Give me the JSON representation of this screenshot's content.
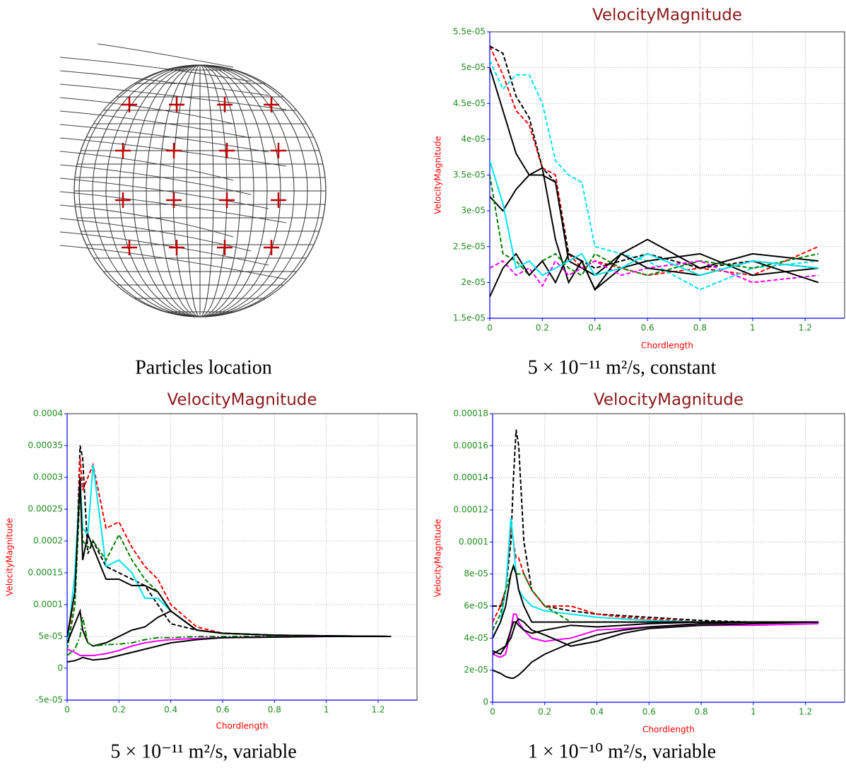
{
  "diagram": {
    "caption": "Particles location"
  },
  "chart_data": [
    {
      "type": "line",
      "title": "VelocityMagnitude",
      "xlabel": "Chordlength",
      "ylabel": "VelocityMagnitude",
      "caption": "5 × 10⁻¹¹ m²/s, constant",
      "x": [
        0,
        0.05,
        0.1,
        0.15,
        0.2,
        0.25,
        0.3,
        0.35,
        0.4,
        0.5,
        0.6,
        0.8,
        1.0,
        1.25
      ],
      "series": [
        {
          "color": "#ff0000",
          "dash": "dashed",
          "values": [
            5.3e-05,
            4.9e-05,
            4.4e-05,
            4.2e-05,
            3.6e-05,
            3.5e-05,
            2.4e-05,
            2.2e-05,
            2.3e-05,
            2.2e-05,
            2.1e-05,
            2.2e-05,
            2.1e-05,
            2.5e-05
          ]
        },
        {
          "color": "#00e5ee",
          "dash": "dashed",
          "values": [
            5.1e-05,
            4.7e-05,
            4.9e-05,
            4.9e-05,
            4.5e-05,
            3.7e-05,
            3.5e-05,
            3.4e-05,
            2.5e-05,
            2.4e-05,
            2.3e-05,
            1.9e-05,
            2.2e-05,
            2.3e-05
          ]
        },
        {
          "color": "#000000",
          "dash": "dashed",
          "values": [
            5.3e-05,
            5.2e-05,
            4.6e-05,
            4.3e-05,
            3.6e-05,
            3.4e-05,
            2.4e-05,
            2.3e-05,
            2.2e-05,
            2.3e-05,
            2.4e-05,
            2.2e-05,
            2.3e-05,
            2.2e-05
          ]
        },
        {
          "color": "#000000",
          "dash": "solid",
          "values": [
            5e-05,
            4.4e-05,
            3.8e-05,
            3.5e-05,
            3.5e-05,
            3.4e-05,
            2.3e-05,
            2.2e-05,
            2.1e-05,
            2.4e-05,
            2.6e-05,
            2.2e-05,
            2.4e-05,
            2.3e-05
          ]
        },
        {
          "color": "#000000",
          "dash": "solid",
          "values": [
            3.2e-05,
            3e-05,
            3.3e-05,
            3.5e-05,
            3.6e-05,
            2.6e-05,
            2e-05,
            2.3e-05,
            1.9e-05,
            2.2e-05,
            2.3e-05,
            2.4e-05,
            2.1e-05,
            2.2e-05
          ]
        },
        {
          "color": "#008000",
          "dash": "dashed",
          "values": [
            3.5e-05,
            2.4e-05,
            2.3e-05,
            2.1e-05,
            2.3e-05,
            2.4e-05,
            2.2e-05,
            2.1e-05,
            2.4e-05,
            2.2e-05,
            2.1e-05,
            2.3e-05,
            2.2e-05,
            2.4e-05
          ]
        },
        {
          "color": "#ff00ff",
          "dash": "dashed",
          "values": [
            2.2e-05,
            2.3e-05,
            2.1e-05,
            2.2e-05,
            1.95e-05,
            2.3e-05,
            2.1e-05,
            2.2e-05,
            2.3e-05,
            2.1e-05,
            2.2e-05,
            2.3e-05,
            2e-05,
            2.1e-05
          ]
        },
        {
          "color": "#000000",
          "dash": "solid",
          "values": [
            1.8e-05,
            2.2e-05,
            2.4e-05,
            2.1e-05,
            2.3e-05,
            2e-05,
            2.4e-05,
            2.3e-05,
            1.9e-05,
            2.4e-05,
            2.2e-05,
            2.1e-05,
            2.3e-05,
            2e-05
          ]
        },
        {
          "color": "#00e5ee",
          "dash": "solid",
          "values": [
            3.7e-05,
            3.1e-05,
            2.2e-05,
            2.3e-05,
            2.1e-05,
            2.2e-05,
            2.3e-05,
            2.4e-05,
            2.1e-05,
            2.2e-05,
            2.4e-05,
            2.1e-05,
            2.3e-05,
            2.2e-05
          ]
        }
      ],
      "xlim": [
        0,
        1.35
      ],
      "ylim": [
        1.5e-05,
        5.5e-05
      ],
      "xticks": [
        0,
        0.2,
        0.4,
        0.6,
        0.8,
        1,
        1.2
      ],
      "yticks": [
        {
          "value": 1.5e-05,
          "label": "1.5e-05"
        },
        {
          "value": 2e-05,
          "label": "2e-05"
        },
        {
          "value": 2.5e-05,
          "label": "2.5e-05"
        },
        {
          "value": 3e-05,
          "label": "3e-05"
        },
        {
          "value": 3.5e-05,
          "label": "3.5e-05"
        },
        {
          "value": 4e-05,
          "label": "4e-05"
        },
        {
          "value": 4.5e-05,
          "label": "4.5e-05"
        },
        {
          "value": 5e-05,
          "label": "5e-05"
        },
        {
          "value": 5.5e-05,
          "label": "5.5e-05"
        }
      ],
      "grid": true
    },
    {
      "type": "line",
      "title": "VelocityMagnitude",
      "xlabel": "Chordlength",
      "ylabel": "VelocityMagnitude",
      "caption": "5 × 10⁻¹¹ m²/s, variable",
      "x": [
        0,
        0.03,
        0.05,
        0.06,
        0.08,
        0.1,
        0.15,
        0.2,
        0.25,
        0.3,
        0.35,
        0.4,
        0.5,
        0.6,
        0.8,
        1.0,
        1.25
      ],
      "series": [
        {
          "color": "#000000",
          "dash": "dashed",
          "values": [
            3e-05,
            0.0001,
            0.00035,
            0.00033,
            0.00018,
            0.0002,
            0.00016,
            0.00015,
            0.00014,
            0.00013,
            0.0001,
            7e-05,
            6e-05,
            5.5e-05,
            5.2e-05,
            5.1e-05,
            5e-05
          ]
        },
        {
          "color": "#ff0000",
          "dash": "dashed",
          "values": [
            4e-05,
            0.00012,
            0.00033,
            0.00028,
            0.0003,
            0.00032,
            0.00022,
            0.00023,
            0.00019,
            0.00016,
            0.00014,
            0.0001,
            6.5e-05,
            5.5e-05,
            5.2e-05,
            5.1e-05,
            5e-05
          ]
        },
        {
          "color": "#00e5ee",
          "dash": "solid",
          "values": [
            3.5e-05,
            0.00015,
            0.0003,
            0.00022,
            0.00021,
            0.00032,
            0.00016,
            0.00017,
            0.00015,
            0.00011,
            0.00011,
            9e-05,
            6e-05,
            5.5e-05,
            5.2e-05,
            5.1e-05,
            5e-05
          ]
        },
        {
          "color": "#008000",
          "dash": "dashed",
          "values": [
            3e-05,
            0.0001,
            0.00028,
            0.0002,
            0.00019,
            0.0002,
            0.00017,
            0.00021,
            0.00017,
            0.00014,
            0.00012,
            9e-05,
            6e-05,
            5.5e-05,
            5.2e-05,
            5.1e-05,
            5e-05
          ]
        },
        {
          "color": "#000000",
          "dash": "solid",
          "values": [
            5e-05,
            0.00012,
            0.0003,
            0.00017,
            0.00021,
            0.00019,
            0.00014,
            0.00014,
            0.00013,
            0.00013,
            0.00012,
            9e-05,
            6e-05,
            5.5e-05,
            5.2e-05,
            5.1e-05,
            5e-05
          ]
        },
        {
          "color": "#000000",
          "dash": "solid",
          "values": [
            4e-05,
            7e-05,
            9e-05,
            6e-05,
            4e-05,
            3.5e-05,
            4e-05,
            5e-05,
            6e-05,
            6.5e-05,
            8e-05,
            9e-05,
            6e-05,
            5.5e-05,
            5.2e-05,
            5.1e-05,
            5e-05
          ]
        },
        {
          "color": "#008000",
          "dash": "dashdot",
          "values": [
            2e-05,
            3e-05,
            5e-05,
            8e-05,
            4e-05,
            3.5e-05,
            3.7e-05,
            3.8e-05,
            4e-05,
            4.5e-05,
            4.8e-05,
            4.8e-05,
            5e-05,
            5e-05,
            5e-05,
            5e-05,
            5e-05
          ]
        },
        {
          "color": "#ff00ff",
          "dash": "solid",
          "values": [
            3e-05,
            2.5e-05,
            2e-05,
            2e-05,
            2e-05,
            2e-05,
            2.3e-05,
            2.8e-05,
            3.5e-05,
            4e-05,
            4.3e-05,
            4.5e-05,
            4.7e-05,
            4.8e-05,
            4.9e-05,
            5e-05,
            5e-05
          ]
        },
        {
          "color": "#000000",
          "dash": "solid",
          "values": [
            1e-05,
            1.2e-05,
            1.5e-05,
            1.7e-05,
            1.5e-05,
            1.3e-05,
            1.5e-05,
            2e-05,
            2.5e-05,
            3e-05,
            3.5e-05,
            4e-05,
            4.5e-05,
            4.8e-05,
            4.9e-05,
            5e-05,
            5e-05
          ]
        }
      ],
      "xlim": [
        0,
        1.35
      ],
      "ylim": [
        -5e-05,
        0.0004
      ],
      "xticks": [
        0,
        0.2,
        0.4,
        0.6,
        0.8,
        1,
        1.2
      ],
      "yticks": [
        {
          "value": -5e-05,
          "label": "-5e-05"
        },
        0,
        {
          "value": 5e-05,
          "label": "5e-05"
        },
        0.0001,
        0.00015,
        0.0002,
        0.00025,
        0.0003,
        0.00035,
        0.0004
      ],
      "grid": true
    },
    {
      "type": "line",
      "title": "VelocityMagnitude",
      "xlabel": "Chordlength",
      "ylabel": "VelocityMagnitude",
      "caption": "1 × 10⁻¹⁰ m²/s, variable",
      "x": [
        0,
        0.03,
        0.05,
        0.07,
        0.08,
        0.09,
        0.1,
        0.12,
        0.15,
        0.2,
        0.3,
        0.4,
        0.5,
        0.6,
        0.8,
        1.0,
        1.25
      ],
      "series": [
        {
          "color": "#000000",
          "dash": "dashed",
          "values": [
            6e-05,
            6e-05,
            7e-05,
            0.0001,
            0.00014,
            0.00017,
            0.00016,
            0.0001,
            7e-05,
            6e-05,
            5.7e-05,
            5.5e-05,
            5.4e-05,
            5.3e-05,
            5.1e-05,
            5e-05,
            5e-05
          ]
        },
        {
          "color": "#ff0000",
          "dash": "dashed",
          "values": [
            5e-05,
            6e-05,
            7e-05,
            0.00011,
            0.0001,
            9e-05,
            9e-05,
            8e-05,
            7e-05,
            6e-05,
            6e-05,
            5.5e-05,
            5.3e-05,
            5.2e-05,
            5e-05,
            5e-05,
            5e-05
          ]
        },
        {
          "color": "#00e5ee",
          "dash": "solid",
          "values": [
            4e-05,
            5e-05,
            7e-05,
            0.000115,
            0.0001,
            8e-05,
            7e-05,
            6.5e-05,
            6e-05,
            5.7e-05,
            5.5e-05,
            5.3e-05,
            5.2e-05,
            5.1e-05,
            5e-05,
            5e-05,
            5e-05
          ]
        },
        {
          "color": "#008000",
          "dash": "dashed",
          "values": [
            4.5e-05,
            5.5e-05,
            7e-05,
            8e-05,
            8.5e-05,
            8e-05,
            8e-05,
            8e-05,
            7e-05,
            6e-05,
            5e-05,
            5e-05,
            5e-05,
            5e-05,
            5e-05,
            5e-05,
            5e-05
          ]
        },
        {
          "color": "#000000",
          "dash": "solid",
          "values": [
            4e-05,
            5e-05,
            6e-05,
            8e-05,
            8.5e-05,
            8e-05,
            7e-05,
            6e-05,
            5e-05,
            5e-05,
            5e-05,
            5e-05,
            5e-05,
            5e-05,
            5e-05,
            5e-05,
            5e-05
          ]
        },
        {
          "color": "#ff00ff",
          "dash": "solid",
          "values": [
            3e-05,
            2.8e-05,
            3e-05,
            4.5e-05,
            5.5e-05,
            5.5e-05,
            5e-05,
            4.5e-05,
            4e-05,
            3.8e-05,
            4e-05,
            4.5e-05,
            4.6e-05,
            4.7e-05,
            4.8e-05,
            4.8e-05,
            4.9e-05
          ]
        },
        {
          "color": "#000000",
          "dash": "solid",
          "values": [
            3e-05,
            3.3e-05,
            3.5e-05,
            4e-05,
            4.5e-05,
            5e-05,
            5.2e-05,
            5e-05,
            4.5e-05,
            4.2e-05,
            3.5e-05,
            3.8e-05,
            4.3e-05,
            4.6e-05,
            4.8e-05,
            4.9e-05,
            5e-05
          ]
        },
        {
          "color": "#000000",
          "dash": "solid",
          "values": [
            2e-05,
            1.8e-05,
            1.6e-05,
            1.5e-05,
            1.5e-05,
            1.6e-05,
            1.7e-05,
            2e-05,
            2.5e-05,
            3e-05,
            3.7e-05,
            4.2e-05,
            4.5e-05,
            4.7e-05,
            4.9e-05,
            5e-05,
            5e-05
          ]
        },
        {
          "color": "#000000",
          "dash": "solid",
          "values": [
            3.2e-05,
            3e-05,
            3.5e-05,
            4.5e-05,
            5e-05,
            5e-05,
            4.8e-05,
            4.5e-05,
            4.3e-05,
            4.5e-05,
            4.8e-05,
            4.7e-05,
            4.8e-05,
            4.9e-05,
            5e-05,
            5e-05,
            5e-05
          ]
        }
      ],
      "xlim": [
        0,
        1.35
      ],
      "ylim": [
        0,
        0.00018
      ],
      "xticks": [
        0,
        0.2,
        0.4,
        0.6,
        0.8,
        1,
        1.2
      ],
      "yticks": [
        0,
        {
          "value": 2e-05,
          "label": "2e-05"
        },
        {
          "value": 4e-05,
          "label": "4e-05"
        },
        {
          "value": 6e-05,
          "label": "6e-05"
        },
        {
          "value": 8e-05,
          "label": "8e-05"
        },
        0.0001,
        0.00012,
        0.00014,
        0.00016,
        0.00018
      ],
      "grid": true
    }
  ]
}
